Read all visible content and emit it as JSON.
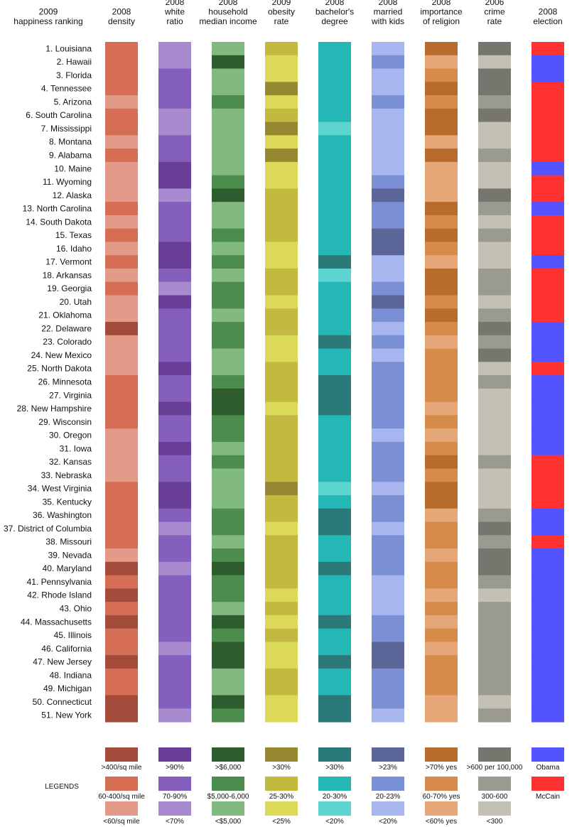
{
  "chart_data": {
    "type": "heatmap",
    "title": "",
    "columns": [
      {
        "key": "density",
        "label": [
          "2008",
          "density"
        ]
      },
      {
        "key": "white_ratio",
        "label": [
          "2008",
          "white",
          "ratio"
        ]
      },
      {
        "key": "income",
        "label": [
          "2008",
          "household",
          "median income"
        ]
      },
      {
        "key": "obesity",
        "label": [
          "2009",
          "obesity",
          "rate"
        ]
      },
      {
        "key": "bachelors",
        "label": [
          "2008",
          "bachelor's",
          "degree"
        ]
      },
      {
        "key": "married",
        "label": [
          "2008",
          "married",
          "with kids"
        ]
      },
      {
        "key": "religion",
        "label": [
          "2008",
          "importance",
          "of religion"
        ]
      },
      {
        "key": "crime",
        "label": [
          "2006",
          "crime",
          "rate"
        ]
      },
      {
        "key": "election",
        "label": [
          "2008",
          "election"
        ]
      }
    ],
    "row_header": [
      "2009",
      "happiness ranking"
    ],
    "palette": {
      "density": [
        "#a24b3b",
        "#d56e54",
        "#e49a88"
      ],
      "white_ratio": [
        "#693e96",
        "#855fbc",
        "#a88ace"
      ],
      "income": [
        "#2f5c2f",
        "#4c8c4c",
        "#82b97e"
      ],
      "obesity": [
        "#958831",
        "#c3b941",
        "#dcd958"
      ],
      "bachelors": [
        "#2b7878",
        "#25b6b6",
        "#5dd4d0"
      ],
      "married": [
        "#5c6699",
        "#7b8fd4",
        "#a8b6f0"
      ],
      "religion": [
        "#b86c2c",
        "#d68b4a",
        "#e5a777"
      ],
      "crime": [
        "#76766e",
        "#9a9a91",
        "#c2c1b4"
      ],
      "election": [
        "#5353ff",
        "#ff3131"
      ]
    },
    "legend_title": "LEGENDS",
    "legend": {
      "density": [
        ">400/sq mile",
        "60-400/sq mile",
        "<60/sq mile"
      ],
      "white_ratio": [
        ">90%",
        "70-90%",
        "<70%"
      ],
      "income": [
        ">$6,000",
        "$5,000-6,000",
        "<$5,000"
      ],
      "obesity": [
        ">30%",
        "25-30%",
        "<25%"
      ],
      "bachelors": [
        ">30%",
        "20-30%",
        "<20%"
      ],
      "married": [
        ">23%",
        "20-23%",
        "<20%"
      ],
      "religion": [
        ">70% yes",
        "60-70% yes",
        "<60% yes"
      ],
      "crime": [
        ">600 per 100,000",
        "300-600",
        "<300"
      ],
      "election": [
        "Obama",
        "McCain"
      ]
    },
    "rows": [
      {
        "label": "1. Louisiana",
        "values": [
          1,
          2,
          2,
          1,
          1,
          2,
          0,
          0,
          1
        ]
      },
      {
        "label": "2. Hawaii",
        "values": [
          1,
          2,
          0,
          2,
          1,
          1,
          2,
          2,
          0
        ]
      },
      {
        "label": "3. Florida",
        "values": [
          1,
          1,
          2,
          2,
          1,
          2,
          1,
          0,
          0
        ]
      },
      {
        "label": "4. Tennessee",
        "values": [
          1,
          1,
          2,
          0,
          1,
          2,
          0,
          0,
          1
        ]
      },
      {
        "label": "5. Arizona",
        "values": [
          2,
          1,
          1,
          2,
          1,
          1,
          1,
          1,
          1
        ]
      },
      {
        "label": "6. South Carolina",
        "values": [
          1,
          2,
          2,
          1,
          1,
          2,
          0,
          0,
          1
        ]
      },
      {
        "label": "7. Mississippi",
        "values": [
          1,
          2,
          2,
          0,
          2,
          2,
          0,
          2,
          1
        ]
      },
      {
        "label": "8. Montana",
        "values": [
          2,
          1,
          2,
          2,
          1,
          2,
          2,
          2,
          1
        ]
      },
      {
        "label": "9. Alabama",
        "values": [
          1,
          1,
          2,
          0,
          1,
          2,
          0,
          1,
          1
        ]
      },
      {
        "label": "10. Maine",
        "values": [
          2,
          0,
          2,
          2,
          1,
          2,
          2,
          2,
          0
        ]
      },
      {
        "label": "11. Wyoming",
        "values": [
          2,
          0,
          1,
          2,
          1,
          1,
          2,
          2,
          1
        ]
      },
      {
        "label": "12. Alaska",
        "values": [
          2,
          2,
          0,
          1,
          1,
          0,
          2,
          0,
          1
        ]
      },
      {
        "label": "13. North Carolina",
        "values": [
          1,
          1,
          2,
          1,
          1,
          1,
          0,
          1,
          0
        ]
      },
      {
        "label": "14. South Dakota",
        "values": [
          2,
          1,
          2,
          1,
          1,
          1,
          1,
          2,
          1
        ]
      },
      {
        "label": "15. Texas",
        "values": [
          1,
          1,
          1,
          1,
          1,
          0,
          0,
          1,
          1
        ]
      },
      {
        "label": "16. Idaho",
        "values": [
          2,
          0,
          2,
          2,
          1,
          0,
          1,
          2,
          1
        ]
      },
      {
        "label": "17. Vermont",
        "values": [
          1,
          0,
          1,
          2,
          0,
          2,
          2,
          2,
          0
        ]
      },
      {
        "label": "18. Arkansas",
        "values": [
          2,
          1,
          2,
          1,
          2,
          2,
          0,
          1,
          1
        ]
      },
      {
        "label": "19. Georgia",
        "values": [
          1,
          2,
          1,
          1,
          1,
          1,
          0,
          1,
          1
        ]
      },
      {
        "label": "20. Utah",
        "values": [
          2,
          0,
          1,
          2,
          1,
          0,
          1,
          2,
          1
        ]
      },
      {
        "label": "21. Oklahoma",
        "values": [
          2,
          1,
          2,
          1,
          1,
          1,
          0,
          1,
          1
        ]
      },
      {
        "label": "22. Delaware",
        "values": [
          0,
          1,
          1,
          1,
          1,
          2,
          1,
          0,
          0
        ]
      },
      {
        "label": "23. Colorado",
        "values": [
          2,
          1,
          1,
          2,
          0,
          1,
          2,
          1,
          0
        ]
      },
      {
        "label": "24. New Mexico",
        "values": [
          2,
          1,
          2,
          2,
          1,
          2,
          1,
          0,
          0
        ]
      },
      {
        "label": "25. North Dakota",
        "values": [
          2,
          0,
          2,
          1,
          1,
          1,
          1,
          2,
          1
        ]
      },
      {
        "label": "26. Minnesota",
        "values": [
          1,
          1,
          1,
          1,
          0,
          1,
          1,
          1,
          0
        ]
      },
      {
        "label": "27. Virginia",
        "values": [
          1,
          1,
          0,
          1,
          0,
          1,
          1,
          2,
          0
        ]
      },
      {
        "label": "28. New Hampshire",
        "values": [
          1,
          0,
          0,
          2,
          0,
          1,
          2,
          2,
          0
        ]
      },
      {
        "label": "29. Wisconsin",
        "values": [
          1,
          1,
          1,
          1,
          1,
          1,
          1,
          2,
          0
        ]
      },
      {
        "label": "30. Oregon",
        "values": [
          2,
          1,
          1,
          1,
          1,
          2,
          2,
          2,
          0
        ]
      },
      {
        "label": "31. Iowa",
        "values": [
          2,
          0,
          2,
          1,
          1,
          1,
          1,
          2,
          0
        ]
      },
      {
        "label": "32. Kansas",
        "values": [
          2,
          1,
          1,
          1,
          1,
          1,
          0,
          1,
          1
        ]
      },
      {
        "label": "33. Nebraska",
        "values": [
          2,
          1,
          2,
          1,
          1,
          1,
          1,
          2,
          1
        ]
      },
      {
        "label": "34. West Virginia",
        "values": [
          1,
          0,
          2,
          0,
          2,
          2,
          0,
          2,
          1
        ]
      },
      {
        "label": "35. Kentucky",
        "values": [
          1,
          0,
          2,
          1,
          1,
          1,
          0,
          2,
          1
        ]
      },
      {
        "label": "36. Washington",
        "values": [
          1,
          1,
          1,
          1,
          0,
          1,
          2,
          1,
          0
        ]
      },
      {
        "label": "37. District of Columbia",
        "values": [
          1,
          2,
          1,
          2,
          0,
          2,
          1,
          0,
          0
        ]
      },
      {
        "label": "38. Missouri",
        "values": [
          1,
          1,
          2,
          1,
          1,
          1,
          1,
          1,
          1
        ]
      },
      {
        "label": "39. Nevada",
        "values": [
          2,
          1,
          1,
          1,
          1,
          1,
          2,
          0,
          0
        ]
      },
      {
        "label": "40. Maryland",
        "values": [
          0,
          2,
          0,
          1,
          0,
          1,
          1,
          0,
          0
        ]
      },
      {
        "label": "41. Pennsylvania",
        "values": [
          1,
          1,
          1,
          1,
          1,
          2,
          1,
          1,
          0
        ]
      },
      {
        "label": "42. Rhode Island",
        "values": [
          0,
          1,
          1,
          2,
          1,
          2,
          2,
          2,
          0
        ]
      },
      {
        "label": "43. Ohio",
        "values": [
          1,
          1,
          2,
          1,
          1,
          2,
          1,
          1,
          0
        ]
      },
      {
        "label": "44. Massachusetts",
        "values": [
          0,
          1,
          0,
          2,
          0,
          1,
          2,
          1,
          0
        ]
      },
      {
        "label": "45. Illinois",
        "values": [
          1,
          1,
          1,
          1,
          1,
          1,
          1,
          1,
          0
        ]
      },
      {
        "label": "46. California",
        "values": [
          1,
          2,
          0,
          2,
          1,
          0,
          2,
          1,
          0
        ]
      },
      {
        "label": "47. New Jersey",
        "values": [
          0,
          1,
          0,
          2,
          0,
          0,
          1,
          1,
          0
        ]
      },
      {
        "label": "48. Indiana",
        "values": [
          1,
          1,
          2,
          1,
          1,
          1,
          1,
          1,
          0
        ]
      },
      {
        "label": "49. Michigan",
        "values": [
          1,
          1,
          2,
          1,
          1,
          1,
          1,
          1,
          0
        ]
      },
      {
        "label": "50. Connecticut",
        "values": [
          0,
          1,
          0,
          2,
          0,
          1,
          2,
          2,
          0
        ]
      },
      {
        "label": "51. New York",
        "values": [
          0,
          2,
          1,
          2,
          0,
          2,
          2,
          1,
          0
        ]
      }
    ]
  }
}
